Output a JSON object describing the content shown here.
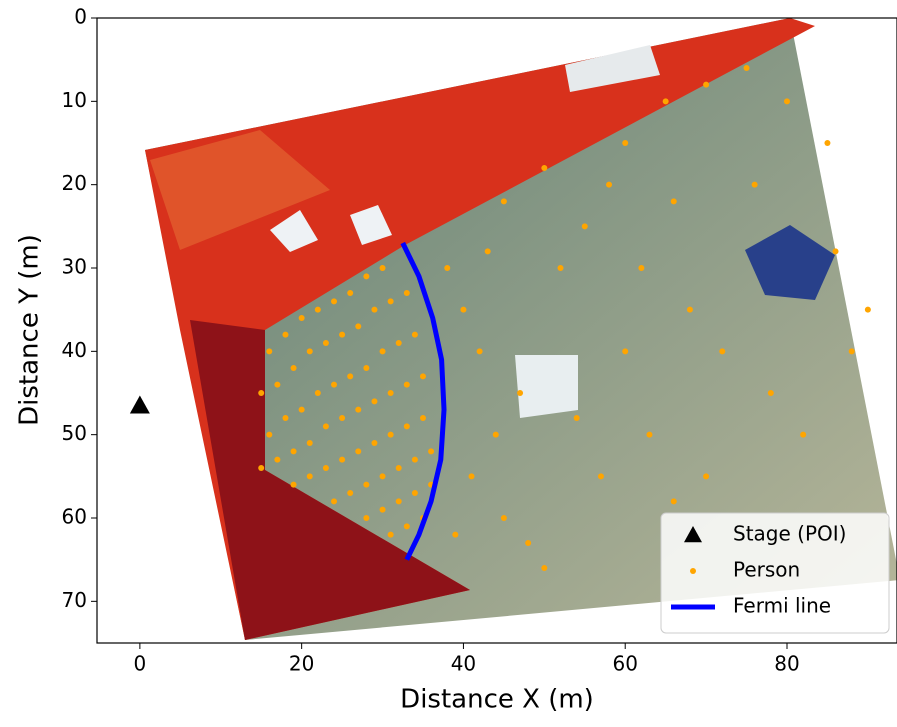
{
  "chart_data": {
    "type": "scatter",
    "xlabel": "Distance X (m)",
    "ylabel": "Distance Y (m)",
    "xlim": [
      -5.3,
      93.6
    ],
    "ylim": [
      75,
      0
    ],
    "xticks": [
      0,
      20,
      40,
      60,
      80
    ],
    "yticks": [
      0,
      10,
      20,
      30,
      40,
      50,
      60,
      70
    ],
    "legend": "lower right",
    "series": [
      {
        "name": "Stage (POI)",
        "type": "scatter",
        "marker": "triangle",
        "color": "#000000",
        "x": [
          0
        ],
        "y": [
          46.5
        ]
      },
      {
        "name": "Person",
        "type": "scatter",
        "marker": "circle",
        "color": "#ffa500",
        "x": [
          16,
          18,
          20,
          22,
          24,
          26,
          28,
          30,
          15,
          17,
          19,
          21,
          23,
          25,
          27,
          29,
          31,
          33,
          16,
          18,
          20,
          22,
          24,
          26,
          28,
          30,
          32,
          34,
          15,
          17,
          19,
          21,
          23,
          25,
          27,
          29,
          31,
          33,
          35,
          19,
          21,
          23,
          25,
          27,
          29,
          31,
          33,
          35,
          24,
          26,
          28,
          30,
          32,
          34,
          36,
          28,
          30,
          32,
          34,
          36,
          31,
          33,
          35,
          40,
          42,
          44,
          41,
          45,
          48,
          50,
          39,
          47,
          52,
          55,
          58,
          60,
          65,
          70,
          75,
          80,
          85,
          62,
          68,
          72,
          78,
          82,
          88,
          57,
          63,
          66,
          70,
          45,
          50,
          38,
          43,
          60,
          54,
          86,
          90,
          76,
          66
        ],
        "y": [
          40,
          38,
          36,
          35,
          34,
          33,
          31,
          30,
          45,
          44,
          42,
          40,
          39,
          38,
          37,
          35,
          34,
          33,
          50,
          48,
          47,
          45,
          44,
          43,
          42,
          40,
          39,
          38,
          54,
          53,
          52,
          51,
          49,
          48,
          47,
          46,
          45,
          44,
          43,
          56,
          55,
          54,
          53,
          52,
          51,
          50,
          49,
          48,
          58,
          57,
          56,
          55,
          54,
          53,
          52,
          60,
          59,
          58,
          57,
          56,
          62,
          61,
          60,
          35,
          40,
          50,
          55,
          60,
          63,
          66,
          62,
          45,
          30,
          25,
          20,
          15,
          10,
          8,
          6,
          10,
          15,
          30,
          35,
          40,
          45,
          50,
          40,
          55,
          50,
          58,
          55,
          22,
          18,
          30,
          28,
          40,
          48,
          28,
          35,
          20,
          22
        ]
      },
      {
        "name": "Fermi line",
        "type": "line",
        "color": "#0000ff",
        "x": [
          32.5,
          34.5,
          36.2,
          37.3,
          37.6,
          37.2,
          36,
          34.5,
          33
        ],
        "y": [
          27,
          31,
          36,
          41,
          47,
          53,
          58,
          62,
          65
        ]
      }
    ]
  }
}
